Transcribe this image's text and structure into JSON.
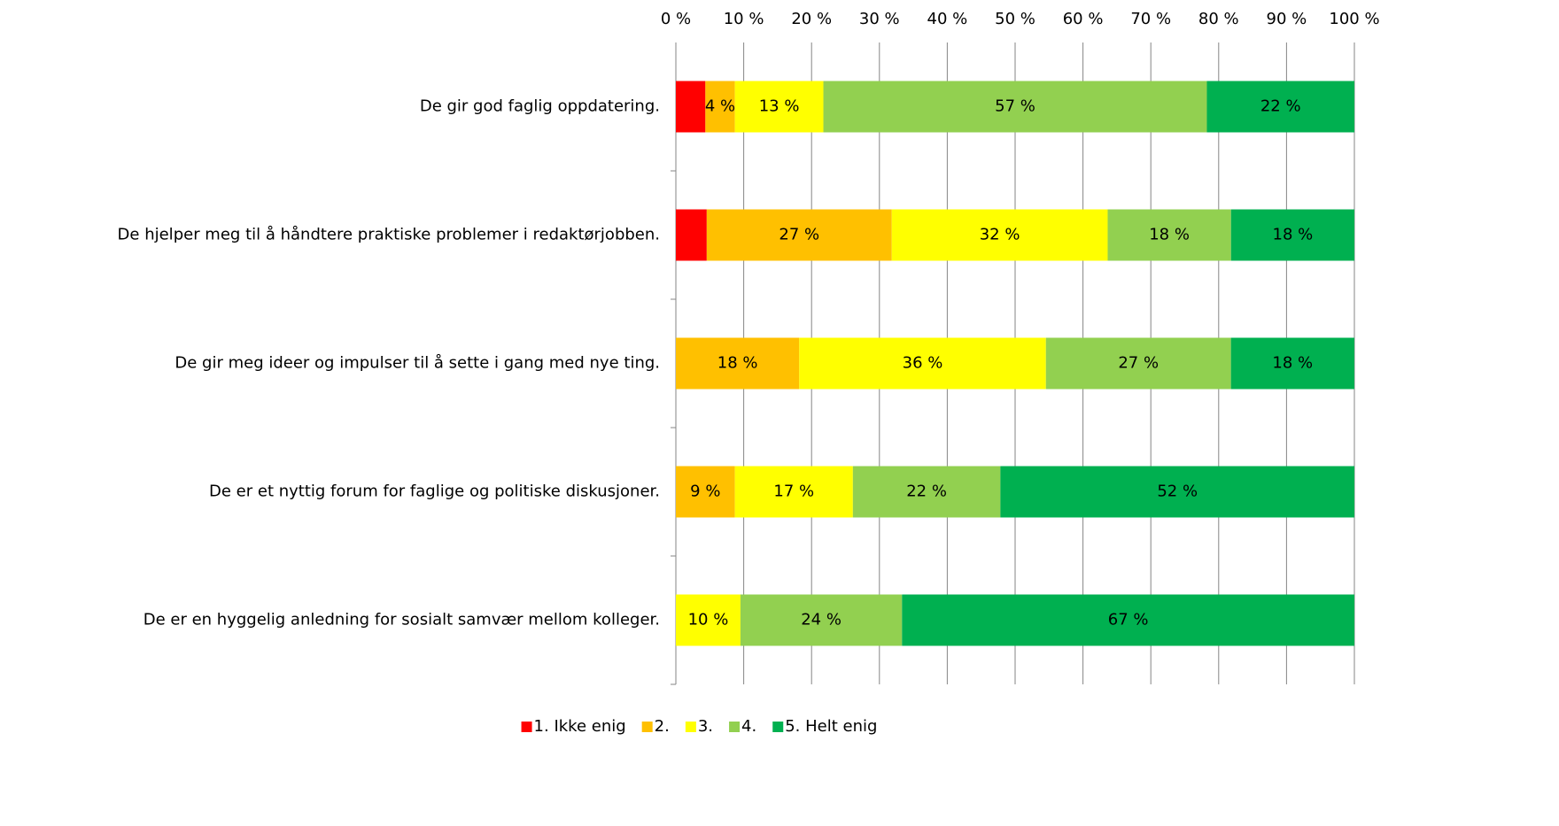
{
  "chart_data": {
    "type": "stacked_bar_horizontal",
    "categories": [
      "De gir god faglig oppdatering.",
      "De hjelper meg til å håndtere praktiske problemer i redaktørjobben.",
      "De gir meg ideer og impulser til å sette i gang med nye ting.",
      "De er et nyttig forum for faglige og politiske diskusjoner.",
      "De er en hyggelig anledning for sosialt samvær mellom kolleger."
    ],
    "series": [
      {
        "name": "1. Ikke enig",
        "color": "#ff0000",
        "values": [
          4.35,
          4.55,
          0,
          0,
          0
        ],
        "value_labels": [
          null,
          null,
          null,
          null,
          null
        ]
      },
      {
        "name": "2.",
        "color": "#ffc000",
        "values": [
          4.35,
          27.27,
          18.18,
          8.7,
          0
        ],
        "value_labels": [
          "4 %",
          "27 %",
          "18 %",
          "9 %",
          null
        ]
      },
      {
        "name": "3.",
        "color": "#ffff00",
        "values": [
          13.04,
          31.82,
          36.36,
          17.39,
          9.52
        ],
        "value_labels": [
          "13 %",
          "32 %",
          "36 %",
          "17 %",
          "10 %"
        ]
      },
      {
        "name": "4.",
        "color": "#92d050",
        "values": [
          56.52,
          18.18,
          27.27,
          21.74,
          23.81
        ],
        "value_labels": [
          "57 %",
          "18 %",
          "27 %",
          "22 %",
          "24 %"
        ]
      },
      {
        "name": "5. Helt enig",
        "color": "#00b050",
        "values": [
          21.74,
          18.18,
          18.18,
          52.17,
          66.67
        ],
        "value_labels": [
          "22 %",
          "18 %",
          "18 %",
          "52 %",
          "67 %"
        ]
      }
    ],
    "xlim": [
      0,
      100
    ],
    "xticks": [
      {
        "value": 0,
        "label": "0 %"
      },
      {
        "value": 10,
        "label": "10 %"
      },
      {
        "value": 20,
        "label": "20 %"
      },
      {
        "value": 30,
        "label": "30 %"
      },
      {
        "value": 40,
        "label": "40 %"
      },
      {
        "value": 50,
        "label": "50 %"
      },
      {
        "value": 60,
        "label": "60 %"
      },
      {
        "value": 70,
        "label": "70 %"
      },
      {
        "value": 80,
        "label": "80 %"
      },
      {
        "value": 90,
        "label": "90 %"
      },
      {
        "value": 100,
        "label": "100 %"
      }
    ],
    "grid": true,
    "legend": "bottom"
  }
}
